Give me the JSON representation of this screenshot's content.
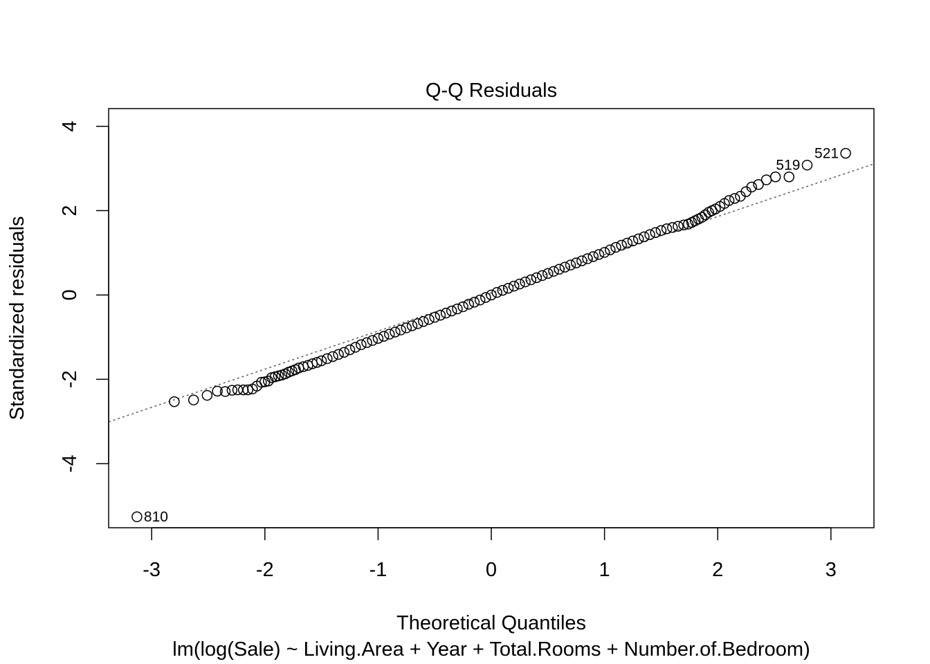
{
  "chart_data": {
    "type": "scatter",
    "title": "Q-Q Residuals",
    "xlabel": "Theoretical Quantiles",
    "subtitle": "lm(log(Sale) ~ Living.Area + Year + Total.Rooms + Number.of.Bedroom)",
    "ylabel": "Standardized residuals",
    "xlim": [
      -3.38,
      3.38
    ],
    "ylim": [
      -5.52,
      4.42
    ],
    "x_ticks": [
      -3,
      -2,
      -1,
      0,
      1,
      2,
      3
    ],
    "x_tick_labels": [
      "-3",
      "-2",
      "-1",
      "0",
      "1",
      "2",
      "3"
    ],
    "y_ticks": [
      -4,
      -2,
      0,
      2,
      4
    ],
    "y_tick_labels": [
      "-4",
      "-2",
      "0",
      "2",
      "4"
    ],
    "reference_line": {
      "style": "dotted",
      "color": "#666666",
      "intercept": 0.05,
      "slope": 0.905
    },
    "point_color": "#000000",
    "grid": false,
    "labeled_points": [
      {
        "label": "810",
        "x": -3.13,
        "y": -5.26,
        "side": "right"
      },
      {
        "label": "519",
        "x": 2.79,
        "y": 3.08,
        "side": "left"
      },
      {
        "label": "521",
        "x": 3.13,
        "y": 3.36,
        "side": "left"
      }
    ],
    "points": [
      [
        -2.8,
        -2.53
      ],
      [
        -2.63,
        -2.49
      ],
      [
        -2.51,
        -2.38
      ],
      [
        -2.42,
        -2.28
      ],
      [
        -2.35,
        -2.29
      ],
      [
        -2.29,
        -2.26
      ],
      [
        -2.24,
        -2.25
      ],
      [
        -2.19,
        -2.25
      ],
      [
        -2.15,
        -2.25
      ],
      [
        -2.11,
        -2.23
      ],
      [
        -2.07,
        -2.16
      ],
      [
        -2.03,
        -2.07
      ],
      [
        -2.0,
        -2.06
      ],
      [
        -1.97,
        -2.04
      ],
      [
        -1.94,
        -1.96
      ],
      [
        -1.91,
        -1.94
      ],
      [
        -1.88,
        -1.92
      ],
      [
        -1.85,
        -1.9
      ],
      [
        -1.82,
        -1.87
      ],
      [
        -1.79,
        -1.83
      ],
      [
        -1.76,
        -1.8
      ],
      [
        -1.73,
        -1.77
      ],
      [
        -1.7,
        -1.73
      ],
      [
        -1.66,
        -1.7
      ],
      [
        -1.62,
        -1.67
      ],
      [
        -1.58,
        -1.63
      ],
      [
        -1.54,
        -1.6
      ],
      [
        -1.5,
        -1.56
      ],
      [
        -1.45,
        -1.51
      ],
      [
        -1.4,
        -1.46
      ],
      [
        -1.35,
        -1.41
      ],
      [
        -1.3,
        -1.36
      ],
      [
        -1.25,
        -1.3
      ],
      [
        -1.2,
        -1.24
      ],
      [
        -1.15,
        -1.18
      ],
      [
        -1.1,
        -1.13
      ],
      [
        -1.05,
        -1.08
      ],
      [
        -1.0,
        -1.03
      ],
      [
        -0.95,
        -0.98
      ],
      [
        -0.9,
        -0.93
      ],
      [
        -0.85,
        -0.88
      ],
      [
        -0.8,
        -0.83
      ],
      [
        -0.75,
        -0.78
      ],
      [
        -0.7,
        -0.73
      ],
      [
        -0.65,
        -0.68
      ],
      [
        -0.6,
        -0.63
      ],
      [
        -0.55,
        -0.58
      ],
      [
        -0.5,
        -0.53
      ],
      [
        -0.45,
        -0.48
      ],
      [
        -0.4,
        -0.43
      ],
      [
        -0.35,
        -0.38
      ],
      [
        -0.3,
        -0.33
      ],
      [
        -0.25,
        -0.28
      ],
      [
        -0.2,
        -0.22
      ],
      [
        -0.15,
        -0.17
      ],
      [
        -0.1,
        -0.12
      ],
      [
        -0.05,
        -0.06
      ],
      [
        0.0,
        0.0
      ],
      [
        0.05,
        0.06
      ],
      [
        0.1,
        0.11
      ],
      [
        0.15,
        0.16
      ],
      [
        0.2,
        0.21
      ],
      [
        0.25,
        0.26
      ],
      [
        0.3,
        0.31
      ],
      [
        0.35,
        0.36
      ],
      [
        0.4,
        0.41
      ],
      [
        0.45,
        0.46
      ],
      [
        0.5,
        0.51
      ],
      [
        0.55,
        0.56
      ],
      [
        0.6,
        0.61
      ],
      [
        0.65,
        0.66
      ],
      [
        0.7,
        0.71
      ],
      [
        0.75,
        0.76
      ],
      [
        0.8,
        0.81
      ],
      [
        0.85,
        0.86
      ],
      [
        0.9,
        0.91
      ],
      [
        0.95,
        0.96
      ],
      [
        1.0,
        1.01
      ],
      [
        1.05,
        1.07
      ],
      [
        1.1,
        1.13
      ],
      [
        1.15,
        1.18
      ],
      [
        1.2,
        1.23
      ],
      [
        1.25,
        1.28
      ],
      [
        1.3,
        1.33
      ],
      [
        1.35,
        1.38
      ],
      [
        1.4,
        1.43
      ],
      [
        1.45,
        1.48
      ],
      [
        1.5,
        1.53
      ],
      [
        1.55,
        1.57
      ],
      [
        1.6,
        1.6
      ],
      [
        1.65,
        1.63
      ],
      [
        1.7,
        1.66
      ],
      [
        1.74,
        1.68
      ],
      [
        1.77,
        1.72
      ],
      [
        1.8,
        1.76
      ],
      [
        1.83,
        1.8
      ],
      [
        1.86,
        1.84
      ],
      [
        1.89,
        1.9
      ],
      [
        1.92,
        1.96
      ],
      [
        1.95,
        2.0
      ],
      [
        1.98,
        2.04
      ],
      [
        2.02,
        2.1
      ],
      [
        2.06,
        2.17
      ],
      [
        2.1,
        2.24
      ],
      [
        2.15,
        2.29
      ],
      [
        2.2,
        2.34
      ],
      [
        2.25,
        2.45
      ],
      [
        2.3,
        2.56
      ],
      [
        2.36,
        2.62
      ],
      [
        2.43,
        2.73
      ],
      [
        2.51,
        2.8
      ],
      [
        2.63,
        2.8
      ]
    ]
  }
}
